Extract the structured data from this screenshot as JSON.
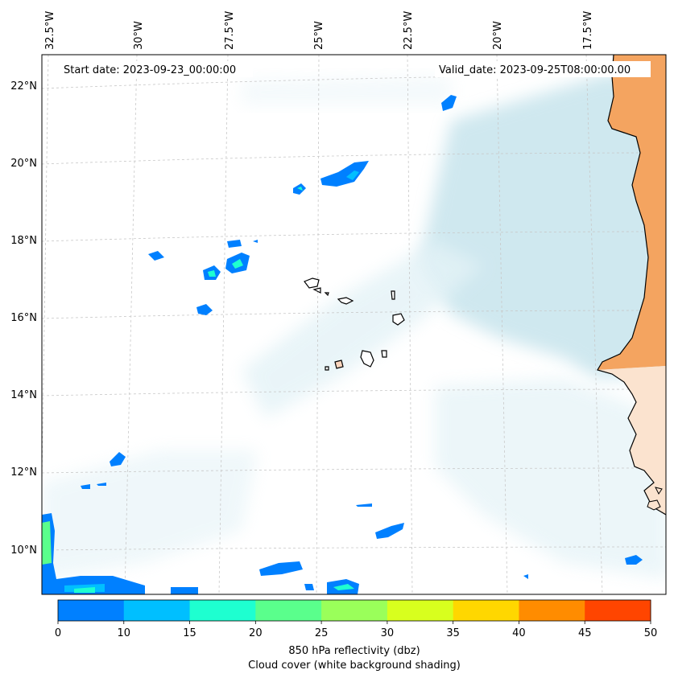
{
  "map": {
    "start_date_label": "Start date: 2023-09-23_00:00:00",
    "valid_date_label": "Valid_date: 2023-09-25T08:00:00.00",
    "longitude_labels": [
      "32.5°W",
      "30°W",
      "27.5°W",
      "25°W",
      "22.5°W",
      "20°W",
      "17.5°W"
    ],
    "latitude_labels": [
      "22°N",
      "20°N",
      "18°N",
      "16°N",
      "14°N",
      "12°N",
      "10°N"
    ]
  },
  "colorbar": {
    "colors": [
      "#0080ff",
      "#00bfff",
      "#1effd0",
      "#5aff8c",
      "#9aff5a",
      "#d8ff1e",
      "#ffd700",
      "#ff8c00",
      "#ff4500"
    ],
    "tick_labels": [
      "0",
      "10",
      "15",
      "20",
      "25",
      "30",
      "35",
      "40",
      "45",
      "50"
    ],
    "caption_line1": "850 hPa reflectivity (dbz)",
    "caption_line2": "Cloud cover (white background shading)"
  },
  "colors": {
    "land": "#f4a460",
    "cloud": "#a8d5e2",
    "coastline": "#000000"
  }
}
